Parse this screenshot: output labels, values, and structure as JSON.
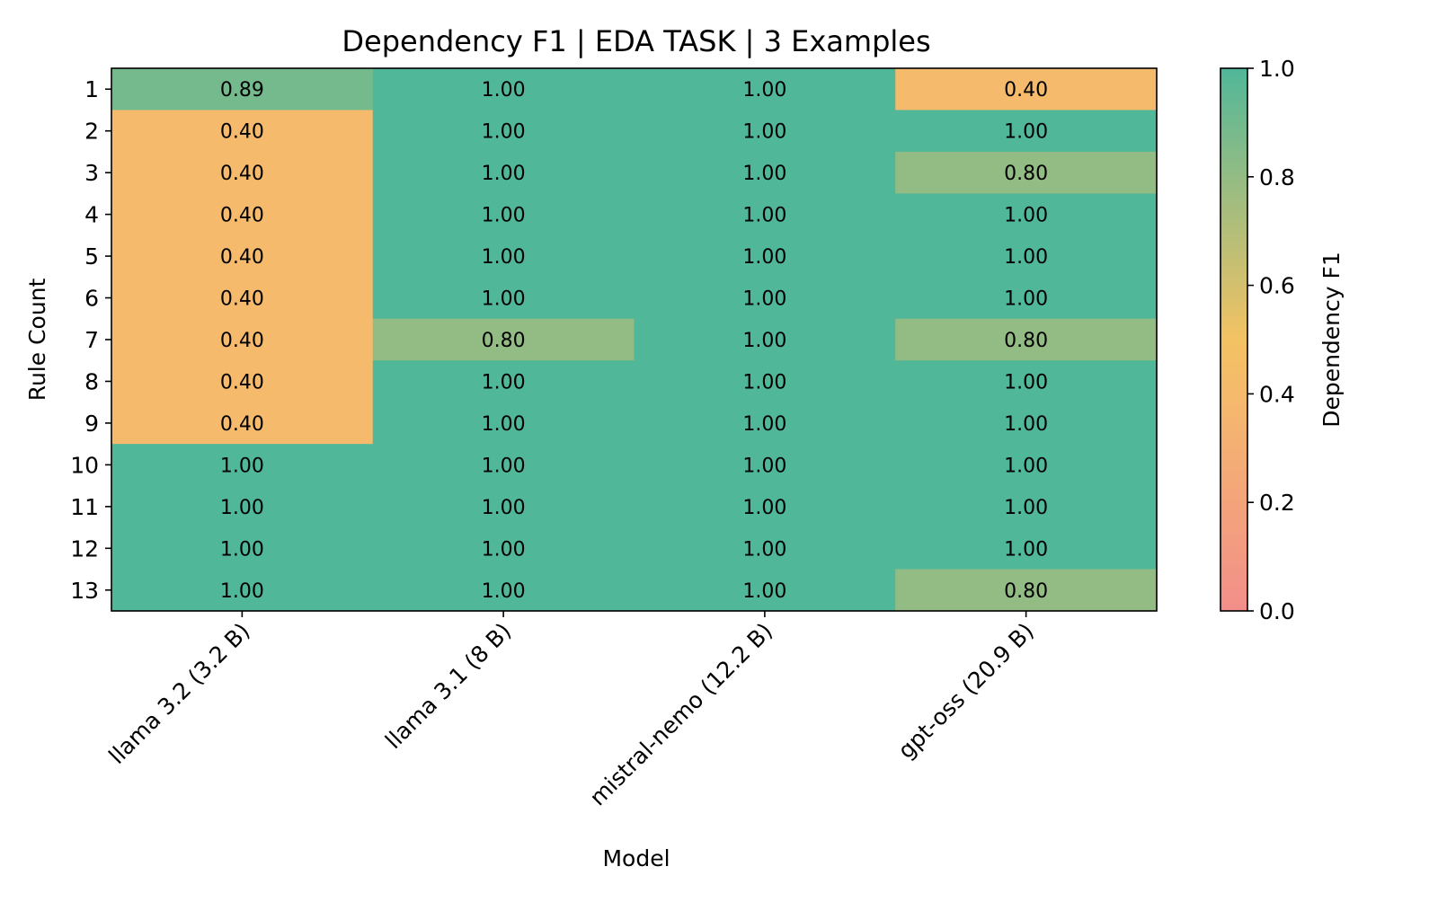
{
  "chart_data": {
    "type": "heatmap",
    "title": "Dependency F1 | EDA TASK | 3 Examples",
    "xlabel": "Model",
    "ylabel": "Rule Count",
    "x_categories": [
      "llama 3.2 (3.2 B)",
      "llama 3.1 (8 B)",
      "mistral-nemo (12.2 B)",
      "gpt-oss (20.9 B)"
    ],
    "y_categories": [
      "1",
      "2",
      "3",
      "4",
      "5",
      "6",
      "7",
      "8",
      "9",
      "10",
      "11",
      "12",
      "13"
    ],
    "values": [
      [
        0.89,
        1.0,
        1.0,
        0.4
      ],
      [
        0.4,
        1.0,
        1.0,
        1.0
      ],
      [
        0.4,
        1.0,
        1.0,
        0.8
      ],
      [
        0.4,
        1.0,
        1.0,
        1.0
      ],
      [
        0.4,
        1.0,
        1.0,
        1.0
      ],
      [
        0.4,
        1.0,
        1.0,
        1.0
      ],
      [
        0.4,
        0.8,
        1.0,
        0.8
      ],
      [
        0.4,
        1.0,
        1.0,
        1.0
      ],
      [
        0.4,
        1.0,
        1.0,
        1.0
      ],
      [
        1.0,
        1.0,
        1.0,
        1.0
      ],
      [
        1.0,
        1.0,
        1.0,
        1.0
      ],
      [
        1.0,
        1.0,
        1.0,
        1.0
      ],
      [
        1.0,
        1.0,
        1.0,
        0.8
      ]
    ],
    "value_labels": [
      [
        "0.89",
        "1.00",
        "1.00",
        "0.40"
      ],
      [
        "0.40",
        "1.00",
        "1.00",
        "1.00"
      ],
      [
        "0.40",
        "1.00",
        "1.00",
        "0.80"
      ],
      [
        "0.40",
        "1.00",
        "1.00",
        "1.00"
      ],
      [
        "0.40",
        "1.00",
        "1.00",
        "1.00"
      ],
      [
        "0.40",
        "1.00",
        "1.00",
        "1.00"
      ],
      [
        "0.40",
        "0.80",
        "1.00",
        "0.80"
      ],
      [
        "0.40",
        "1.00",
        "1.00",
        "1.00"
      ],
      [
        "0.40",
        "1.00",
        "1.00",
        "1.00"
      ],
      [
        "1.00",
        "1.00",
        "1.00",
        "1.00"
      ],
      [
        "1.00",
        "1.00",
        "1.00",
        "1.00"
      ],
      [
        "1.00",
        "1.00",
        "1.00",
        "1.00"
      ],
      [
        "1.00",
        "1.00",
        "1.00",
        "0.80"
      ]
    ],
    "colorbar": {
      "label": "Dependency F1",
      "range": [
        0.0,
        1.0
      ],
      "ticks": [
        0.0,
        0.2,
        0.4,
        0.6,
        0.8,
        1.0
      ],
      "tick_labels": [
        "0.0",
        "0.2",
        "0.4",
        "0.6",
        "0.8",
        "1.0"
      ],
      "colors": [
        "#f28e8a",
        "#f5ba6c",
        "#f3c263",
        "#93bc84",
        "#50b799"
      ],
      "color_stops": [
        0.0,
        0.4,
        0.5,
        0.8,
        1.0
      ]
    },
    "grid": false,
    "legend": "colorbar-right"
  }
}
